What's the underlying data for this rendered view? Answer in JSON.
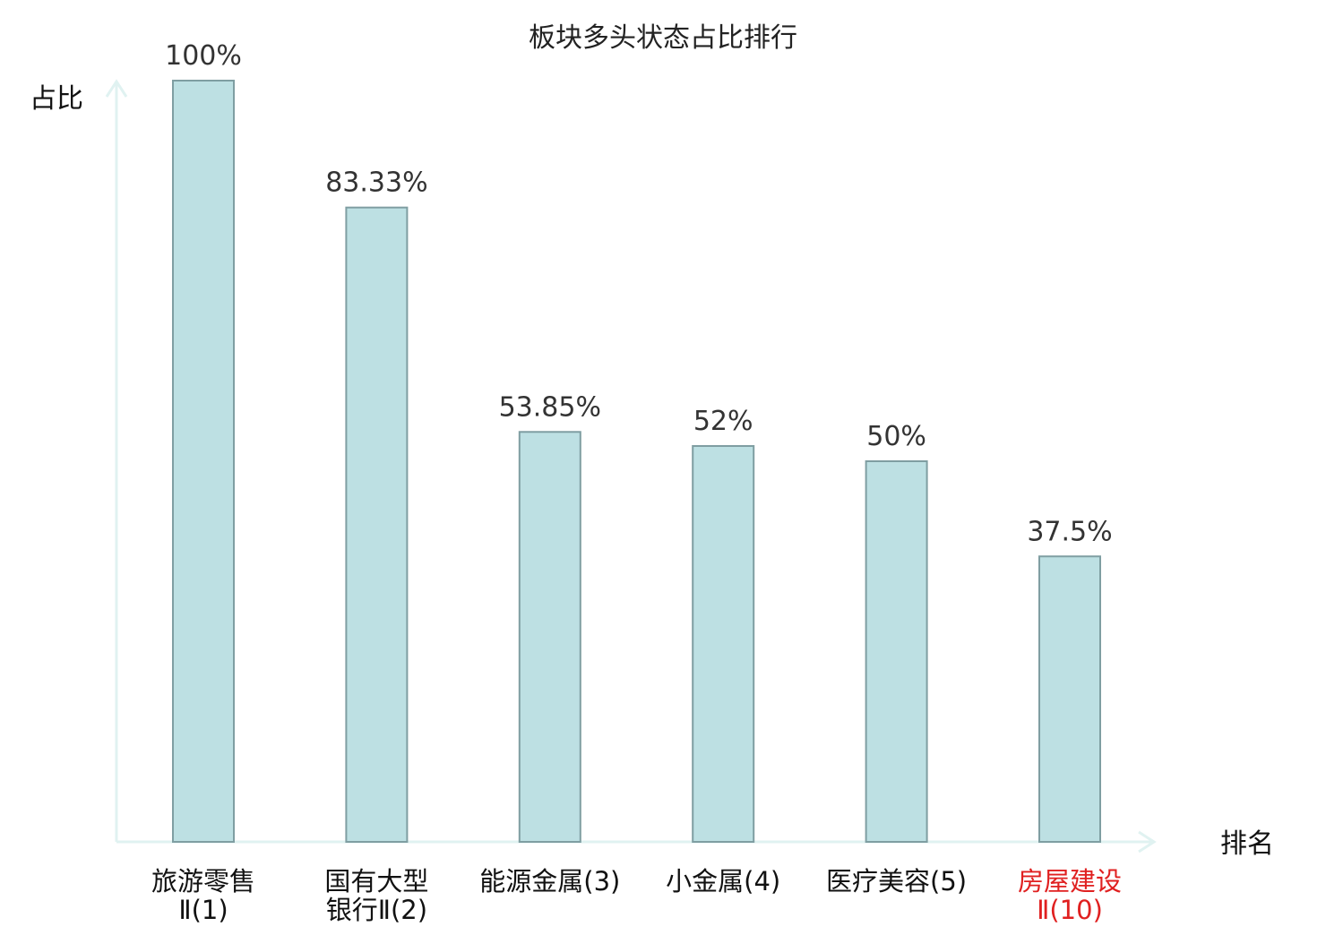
{
  "chart_data": {
    "type": "bar",
    "title": "板块多头状态占比排行",
    "ylabel": "占比",
    "xlabel": "排名",
    "ylim": [
      0,
      100
    ],
    "grid": false,
    "categories": [
      {
        "lines": [
          "旅游零售",
          "Ⅱ(1)"
        ],
        "highlight": false
      },
      {
        "lines": [
          "国有大型",
          "银行Ⅱ(2)"
        ],
        "highlight": false
      },
      {
        "lines": [
          "能源金属(3)"
        ],
        "highlight": false
      },
      {
        "lines": [
          "小金属(4)"
        ],
        "highlight": false
      },
      {
        "lines": [
          "医疗美容(5)"
        ],
        "highlight": false
      },
      {
        "lines": [
          "房屋建设",
          "Ⅱ(10)"
        ],
        "highlight": true
      }
    ],
    "values": [
      100,
      83.33,
      53.85,
      52,
      50,
      37.5
    ],
    "value_labels": [
      "100%",
      "83.33%",
      "53.85%",
      "52%",
      "50%",
      "37.5%"
    ],
    "colors": {
      "bar_fill": "#bde0e3",
      "bar_stroke": "#7f9ea2",
      "axis": "#e0f2f1",
      "text": "#111111",
      "highlight_text": "#e02020"
    }
  }
}
